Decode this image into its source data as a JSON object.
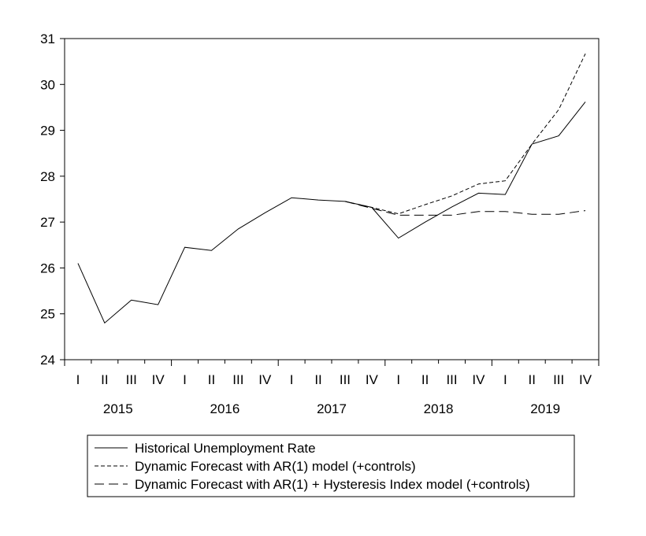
{
  "chart_data": {
    "type": "line",
    "title": "",
    "xlabel": "",
    "ylabel": "",
    "ylim": [
      24,
      31
    ],
    "yticks": [
      24,
      25,
      26,
      27,
      28,
      29,
      30,
      31
    ],
    "quarters": [
      "I",
      "II",
      "III",
      "IV"
    ],
    "years": [
      "2015",
      "2016",
      "2017",
      "2018",
      "2019"
    ],
    "x": [
      "2015 I",
      "2015 II",
      "2015 III",
      "2015 IV",
      "2016 I",
      "2016 II",
      "2016 III",
      "2016 IV",
      "2017 I",
      "2017 II",
      "2017 III",
      "2017 IV",
      "2018 I",
      "2018 II",
      "2018 III",
      "2018 IV",
      "2019 I",
      "2019 II",
      "2019 III",
      "2019 IV"
    ],
    "grid": false,
    "legend_position": "bottom-center",
    "series": [
      {
        "name": "Historical Unemployment Rate",
        "line_style": "solid",
        "color": "#000000",
        "values": [
          26.1,
          24.8,
          25.3,
          25.2,
          26.45,
          26.38,
          26.85,
          27.2,
          27.53,
          27.48,
          27.45,
          27.32,
          26.65,
          27.0,
          27.33,
          27.63,
          27.6,
          28.7,
          28.88,
          29.62
        ]
      },
      {
        "name": "Dynamic Forecast with AR(1) model (+controls)",
        "line_style": "short-dash",
        "color": "#000000",
        "values": [
          null,
          null,
          null,
          null,
          null,
          null,
          null,
          null,
          null,
          null,
          27.45,
          27.32,
          27.18,
          27.38,
          27.57,
          27.83,
          27.9,
          28.7,
          29.45,
          30.67
        ]
      },
      {
        "name": "Dynamic Forecast with AR(1) + Hysteresis Index model (+controls)",
        "line_style": "long-dash",
        "color": "#000000",
        "values": [
          null,
          null,
          null,
          null,
          null,
          null,
          null,
          null,
          null,
          null,
          27.45,
          27.3,
          27.15,
          27.15,
          27.15,
          27.23,
          27.23,
          27.17,
          27.17,
          27.25
        ]
      }
    ]
  }
}
